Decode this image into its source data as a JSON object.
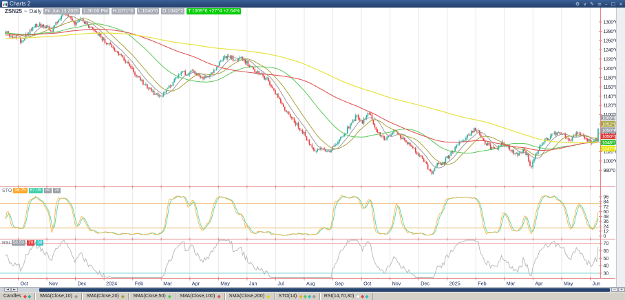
{
  "window": {
    "title": "Charts 2",
    "controls": [
      "gear",
      "chevron-down",
      "pencil",
      "menu",
      "minimize",
      "restore",
      "close"
    ]
  },
  "header": {
    "symbol": "ZSN25",
    "separator": "~",
    "period": "Daily",
    "date": "Fri Jun 13 2025",
    "time": "1:30:00 PM",
    "high": "H:1071^0",
    "low": "L:1040^0",
    "open": "O:1042^2",
    "last": "T:1069^6  +27^4  +2.64%"
  },
  "price_axis": {
    "ticks": [
      "1300^0",
      "1280^0",
      "1260^0",
      "1240^0",
      "1220^0",
      "1200^0",
      "1180^0",
      "1160^0",
      "1140^0",
      "1120^0",
      "1100^0",
      "1080^0",
      "1060^0",
      "1040^0",
      "1020^0",
      "1000^0",
      "980^0"
    ],
    "tick_values": [
      1300,
      1280,
      1260,
      1240,
      1220,
      1200,
      1180,
      1160,
      1140,
      1120,
      1100,
      1080,
      1060,
      1040,
      1020,
      1000,
      980
    ],
    "labels": [
      {
        "text": "1069^6",
        "value": 1069.75,
        "bg": "#9aa0a8",
        "role": "last-price"
      },
      {
        "text": "1052^5",
        "value": 1052.625,
        "bg": "#a8a23c",
        "role": "sma20"
      },
      {
        "text": "1050^6",
        "value": 1050.75,
        "bg": "#9aa0a8",
        "role": "sma10"
      },
      {
        "text": "1050^1",
        "value": 1050.125,
        "bg": "#df3a3a",
        "role": "sma100"
      },
      {
        "text": "1048^1",
        "value": 1048.125,
        "bg": "#2fc42f",
        "role": "sma50"
      },
      {
        "text": "1047^5",
        "value": 1047.625,
        "bg": "#e8e400",
        "role": "sma200"
      }
    ]
  },
  "sto_pane": {
    "label": "STO",
    "values": [
      {
        "text": "96.75",
        "bg": "#ffa726"
      },
      {
        "text": "67.05",
        "bg": "#3bd0a8"
      },
      {
        "text": "80",
        "bg": "#9aa0a8"
      },
      {
        "text": "20",
        "bg": "#9aa0a8"
      }
    ],
    "ticks": [
      96,
      84,
      72,
      60,
      48,
      36,
      24,
      12,
      0
    ],
    "ref_lines": [
      80,
      20
    ]
  },
  "rsi_pane": {
    "label": "RSI",
    "values": [
      {
        "text": "58.50",
        "bg": "#9aa0a8"
      },
      {
        "text": "70",
        "bg": "#e84040"
      },
      {
        "text": "30",
        "bg": "#38c8c8"
      }
    ],
    "ticks": [
      70,
      60,
      50,
      40,
      30
    ],
    "ref_lines": [
      70,
      30
    ]
  },
  "time_axis": {
    "labels": [
      "Oct",
      "Nov",
      "Dec",
      "2024",
      "Feb",
      "Mar",
      "Apr",
      "May",
      "Jun",
      "Jul",
      "Aug",
      "Sep",
      "Oct",
      "Nov",
      "Dec",
      "2025",
      "Feb",
      "Mar",
      "Apr",
      "May",
      "Jun"
    ]
  },
  "scrollbar": {
    "buttons": [
      {
        "name": "scroll-left",
        "glyph": "◄"
      },
      {
        "name": "scroll-right",
        "glyph": "►"
      },
      {
        "name": "zoom-out",
        "glyph": "−"
      },
      {
        "name": "zoom-in",
        "glyph": "+"
      }
    ]
  },
  "legend": {
    "items": [
      {
        "label": "Candles",
        "markers": [
          "#e84545",
          "#2fae9e"
        ]
      },
      {
        "label": "SMA(Close,10)",
        "markers": [
          "#9a9a9a"
        ]
      },
      {
        "label": "SMA(Close,20)",
        "markers": [
          "#a8a23c"
        ]
      },
      {
        "label": "SMA(Close,50)",
        "markers": [
          "#58c858"
        ]
      },
      {
        "label": "SMA(Close,100)",
        "markers": [
          "#e05555"
        ]
      },
      {
        "label": "SMA(Close,200)",
        "markers": [
          "#ddd81e"
        ]
      },
      {
        "label": "STO(14)",
        "markers": [
          "#ffa726",
          "#58c858",
          "#2fbfbf",
          "#9a9a9a"
        ]
      },
      {
        "label": "RSI(14,70,30)",
        "markers": [
          "#ffffff",
          "#e84545",
          "#2fbfbf"
        ]
      }
    ]
  },
  "colors": {
    "up": "#2fae9e",
    "down": "#e84545",
    "sma10": "#9a9a9a",
    "sma20": "#a8a23c",
    "sma50": "#58c858",
    "sma100": "#e05555",
    "sma200": "#e6e23c",
    "sto_k": "#ffb347",
    "sto_d": "#4fd4a4",
    "sto_ref": "#eec27e",
    "rsi_line": "#b5b5b5",
    "rsi_ref_high": "#f0a0a0",
    "rsi_ref_low": "#7fd4d4",
    "frame": "#e08585",
    "grid": "#e7e7e7",
    "axis_text": "#23283a",
    "xlabel_text": "#16275c",
    "last_box": "#00cc00",
    "titlebar": "#2b4a7d"
  },
  "chart_data": {
    "type": "candlestick",
    "symbol": "ZSN25",
    "interval": "Daily",
    "title": "ZSN25 ~ Daily",
    "studies": [
      "SMA(Close,10)",
      "SMA(Close,20)",
      "SMA(Close,50)",
      "SMA(Close,100)",
      "SMA(Close,200)",
      "STO(14)",
      "RSI(14,70,30)"
    ],
    "ylim": [
      939,
      1331
    ],
    "x_range": [
      "Oct 2023",
      "Jun 2025"
    ],
    "last_bar": {
      "open": 1042.25,
      "high": 1071.0,
      "low": 1040.0,
      "close": 1069.75,
      "change": "+27^4",
      "change_pct": "+2.64%"
    },
    "sto_last": {
      "k": 96.75,
      "d": 67.05,
      "overbought": 80,
      "oversold": 20
    },
    "rsi_last": {
      "value": 58.5,
      "overbought": 70,
      "oversold": 30
    },
    "price_anchors": [
      [
        8,
        1278
      ],
      [
        20,
        1268
      ],
      [
        32,
        1258
      ],
      [
        42,
        1280
      ],
      [
        55,
        1296
      ],
      [
        65,
        1288
      ],
      [
        75,
        1282
      ],
      [
        85,
        1306
      ],
      [
        95,
        1318
      ],
      [
        102,
        1309
      ],
      [
        110,
        1296
      ],
      [
        118,
        1308
      ],
      [
        128,
        1292
      ],
      [
        140,
        1278
      ],
      [
        150,
        1262
      ],
      [
        158,
        1252
      ],
      [
        168,
        1238
      ],
      [
        178,
        1225
      ],
      [
        190,
        1202
      ],
      [
        200,
        1182
      ],
      [
        210,
        1165
      ],
      [
        222,
        1148
      ],
      [
        232,
        1140
      ],
      [
        242,
        1152
      ],
      [
        252,
        1172
      ],
      [
        262,
        1192
      ],
      [
        272,
        1188
      ],
      [
        282,
        1193
      ],
      [
        292,
        1178
      ],
      [
        302,
        1181
      ],
      [
        312,
        1196
      ],
      [
        322,
        1218
      ],
      [
        332,
        1230
      ],
      [
        340,
        1218
      ],
      [
        350,
        1223
      ],
      [
        358,
        1212
      ],
      [
        368,
        1198
      ],
      [
        378,
        1188
      ],
      [
        390,
        1172
      ],
      [
        400,
        1148
      ],
      [
        410,
        1122
      ],
      [
        420,
        1098
      ],
      [
        430,
        1080
      ],
      [
        440,
        1062
      ],
      [
        450,
        1038
      ],
      [
        458,
        1018
      ],
      [
        466,
        1028
      ],
      [
        474,
        1018
      ],
      [
        482,
        1026
      ],
      [
        492,
        1042
      ],
      [
        502,
        1062
      ],
      [
        512,
        1086
      ],
      [
        518,
        1096
      ],
      [
        526,
        1082
      ],
      [
        535,
        1106
      ],
      [
        542,
        1086
      ],
      [
        550,
        1058
      ],
      [
        558,
        1048
      ],
      [
        566,
        1053
      ],
      [
        574,
        1066
      ],
      [
        582,
        1052
      ],
      [
        590,
        1042
      ],
      [
        598,
        1032
      ],
      [
        606,
        1018
      ],
      [
        614,
        1002
      ],
      [
        622,
        985
      ],
      [
        628,
        976
      ],
      [
        634,
        996
      ],
      [
        642,
        992
      ],
      [
        650,
        1008
      ],
      [
        658,
        1022
      ],
      [
        666,
        1036
      ],
      [
        674,
        1048
      ],
      [
        682,
        1058
      ],
      [
        690,
        1071
      ],
      [
        697,
        1060
      ],
      [
        704,
        1042
      ],
      [
        712,
        1030
      ],
      [
        720,
        1022
      ],
      [
        728,
        1041
      ],
      [
        736,
        1032
      ],
      [
        744,
        1020
      ],
      [
        752,
        1012
      ],
      [
        760,
        1023
      ],
      [
        766,
        1012
      ],
      [
        771,
        988
      ],
      [
        776,
        1003
      ],
      [
        782,
        1026
      ],
      [
        790,
        1042
      ],
      [
        798,
        1051
      ],
      [
        806,
        1059
      ],
      [
        814,
        1061
      ],
      [
        822,
        1052
      ],
      [
        830,
        1045
      ],
      [
        838,
        1059
      ],
      [
        846,
        1056
      ],
      [
        852,
        1048
      ],
      [
        858,
        1042
      ],
      [
        863,
        1043
      ],
      [
        869,
        1069.75
      ]
    ]
  }
}
